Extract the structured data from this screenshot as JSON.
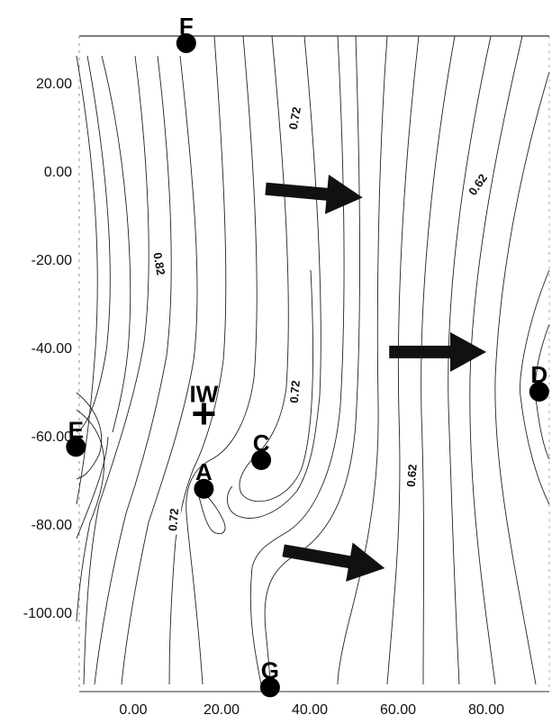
{
  "chart_data": {
    "type": "contour",
    "title": "",
    "xlabel": "",
    "ylabel": "",
    "xlim": [
      -14,
      93
    ],
    "ylim": [
      -118,
      30
    ],
    "grid": false,
    "x_ticks": [
      "0.00",
      "20.00",
      "40.00",
      "60.00",
      "80.00"
    ],
    "x_tick_values": [
      0,
      20,
      40,
      60,
      80
    ],
    "y_ticks": [
      "20.00",
      "0.00",
      "-20.00",
      "-40.00",
      "-60.00",
      "-80.00",
      "-100.00"
    ],
    "y_tick_values": [
      20,
      0,
      -20,
      -40,
      -60,
      -80,
      -100
    ],
    "contour_labels": [
      {
        "text": "0.72",
        "x": 36.5,
        "y": 12
      },
      {
        "text": "0.62",
        "x": 78,
        "y": -3
      },
      {
        "text": "0.82",
        "x": 6,
        "y": -21
      },
      {
        "text": "0.72",
        "x": 36.5,
        "y": -50
      },
      {
        "text": "0.62",
        "x": 63,
        "y": -69
      },
      {
        "text": "0.72",
        "x": 9,
        "y": -79
      }
    ],
    "wells": [
      {
        "label": "F",
        "x": 12,
        "y": 29,
        "marker": "circle"
      },
      {
        "label": "E",
        "x": -13,
        "y": -62.5,
        "marker": "circle"
      },
      {
        "label": "A",
        "x": 16,
        "y": -72,
        "marker": "circle"
      },
      {
        "label": "C",
        "x": 29,
        "y": -65.5,
        "marker": "circle"
      },
      {
        "label": "D",
        "x": 92,
        "y": -50,
        "marker": "circle"
      },
      {
        "label": "G",
        "x": 31,
        "y": -117,
        "marker": "circle"
      },
      {
        "label": "IW",
        "x": 16,
        "y": -55,
        "marker": "plus"
      }
    ],
    "flow_arrows": [
      {
        "x_from": 30,
        "y_from": -4,
        "x_to": 52,
        "y_to": -6
      },
      {
        "x_from": 58,
        "y_from": -41,
        "x_to": 80,
        "y_to": -41
      },
      {
        "x_from": 34,
        "y_from": -86,
        "x_to": 57,
        "y_to": -90
      }
    ]
  }
}
